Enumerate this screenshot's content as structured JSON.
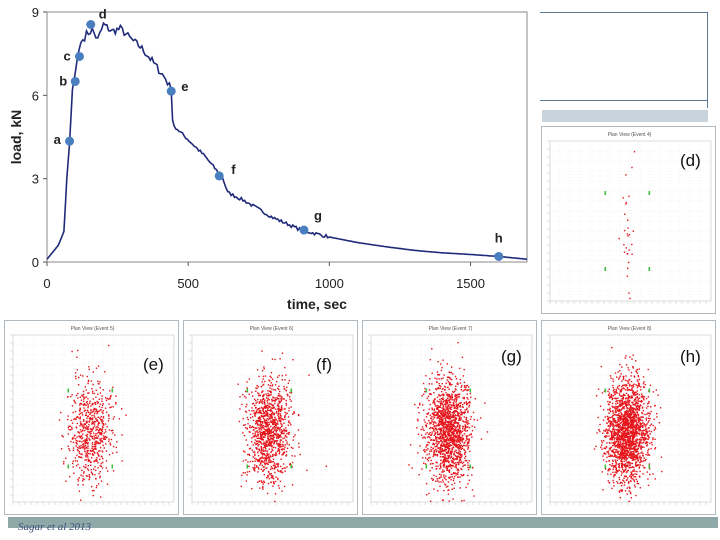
{
  "chart_data": {
    "type": "line",
    "xlabel": "time, sec",
    "ylabel": "load, kN",
    "xlim": [
      0,
      1700
    ],
    "ylim": [
      0,
      9
    ],
    "x_ticks": [
      "0",
      "500",
      "1000",
      "1500"
    ],
    "y_ticks": [
      "0",
      "3",
      "6",
      "9"
    ],
    "grid": false,
    "series": [
      {
        "name": "load",
        "color": "#1f2a7a",
        "x": [
          0,
          40,
          60,
          70,
          80,
          90,
          100,
          110,
          120,
          140,
          160,
          180,
          200,
          230,
          260,
          280,
          300,
          330,
          360,
          390,
          420,
          440,
          445,
          450,
          480,
          520,
          560,
          600,
          620,
          640,
          700,
          800,
          900,
          1000,
          1100,
          1200,
          1300,
          1400,
          1500,
          1600,
          1700
        ],
        "y": [
          0.1,
          0.6,
          1.1,
          3.0,
          4.3,
          6.2,
          6.8,
          7.5,
          7.9,
          8.2,
          8.35,
          8.0,
          8.55,
          8.3,
          8.4,
          8.2,
          8.0,
          7.75,
          7.4,
          7.0,
          6.6,
          6.2,
          5.1,
          4.9,
          4.6,
          4.2,
          3.8,
          3.3,
          3.1,
          2.5,
          2.2,
          1.6,
          1.15,
          0.9,
          0.7,
          0.55,
          0.42,
          0.33,
          0.27,
          0.2,
          0.1
        ]
      }
    ],
    "points": [
      {
        "label": "a",
        "x": 80,
        "y": 4.35
      },
      {
        "label": "b",
        "x": 100,
        "y": 6.5
      },
      {
        "label": "c",
        "x": 115,
        "y": 7.4
      },
      {
        "label": "d",
        "x": 155,
        "y": 8.55
      },
      {
        "label": "e",
        "x": 440,
        "y": 6.15
      },
      {
        "label": "f",
        "x": 610,
        "y": 3.1
      },
      {
        "label": "g",
        "x": 910,
        "y": 1.15
      },
      {
        "label": "h",
        "x": 1600,
        "y": 0.2
      }
    ],
    "panels": [
      {
        "label": "(d)",
        "title": "Plan View (Event 4)",
        "events": 30
      },
      {
        "label": "(e)",
        "title": "Plan View (Event 5)",
        "events": 650
      },
      {
        "label": "(f)",
        "title": "Plan View (Event 6)",
        "events": 1100
      },
      {
        "label": "(g)",
        "title": "Plan View (Event 7)",
        "events": 1500
      },
      {
        "label": "(h)",
        "title": "Plan View (Event 8)",
        "events": 1900
      }
    ]
  },
  "colors": {
    "line": "#1f2a7a",
    "marker": "#4a7fbf",
    "scatter": "#e4151b",
    "sensor": "#3fbf3f"
  },
  "citation": "Sagar et al 2013"
}
